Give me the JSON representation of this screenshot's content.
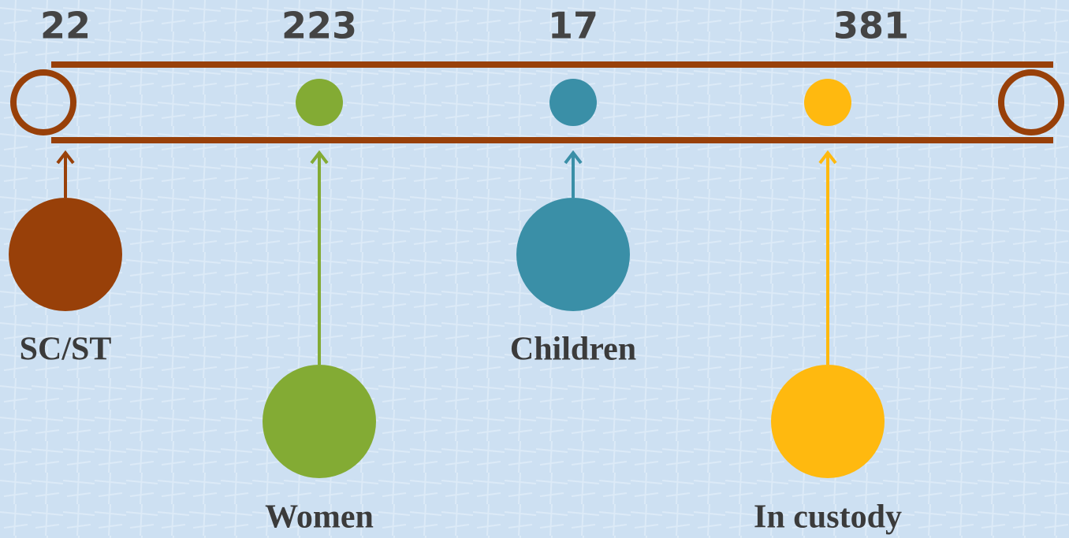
{
  "items": [
    {
      "value": "22",
      "label": "SC/ST",
      "color": "#984009"
    },
    {
      "value": "223",
      "label": "Women",
      "color": "#83ab34"
    },
    {
      "value": "17",
      "label": "Children",
      "color": "#3a8fa7"
    },
    {
      "value": "381",
      "label": "In custody",
      "color": "#ffb90f"
    }
  ],
  "track_color": "#984009"
}
